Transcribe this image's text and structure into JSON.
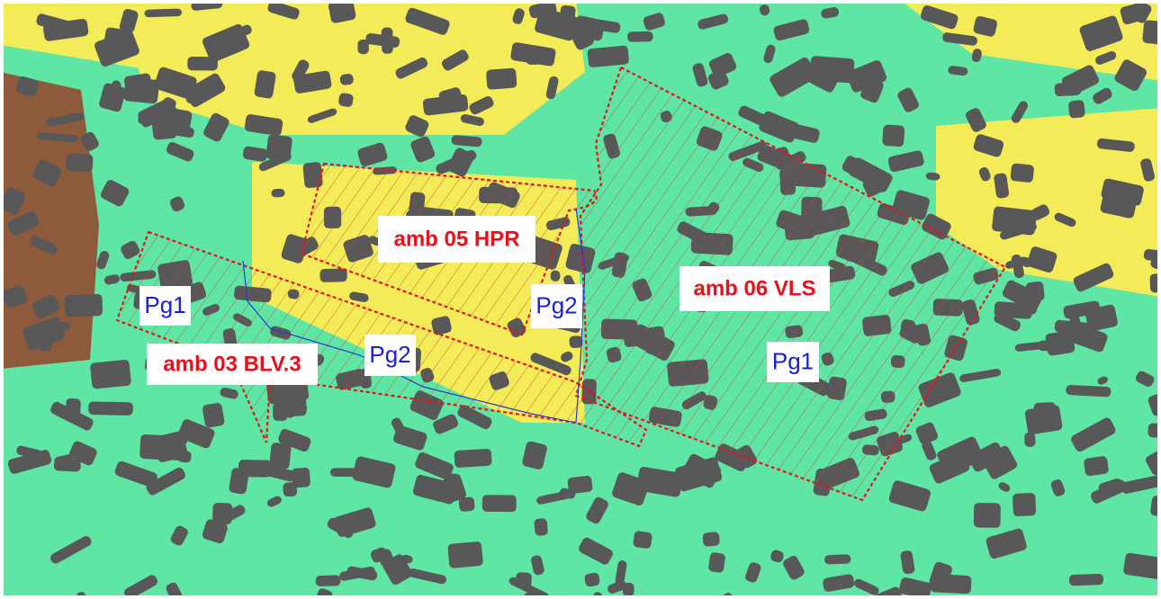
{
  "labels": [
    {
      "text": "amb 05 HPR",
      "kind": "zone"
    },
    {
      "text": "amb 06 VLS",
      "kind": "zone"
    },
    {
      "text": "amb 03 BLV.3",
      "kind": "zone"
    },
    {
      "text": "Pg1",
      "kind": "subzone"
    },
    {
      "text": "Pg2",
      "kind": "subzone"
    },
    {
      "text": "Pg2",
      "kind": "subzone"
    },
    {
      "text": "Pg1",
      "kind": "subzone"
    }
  ]
}
